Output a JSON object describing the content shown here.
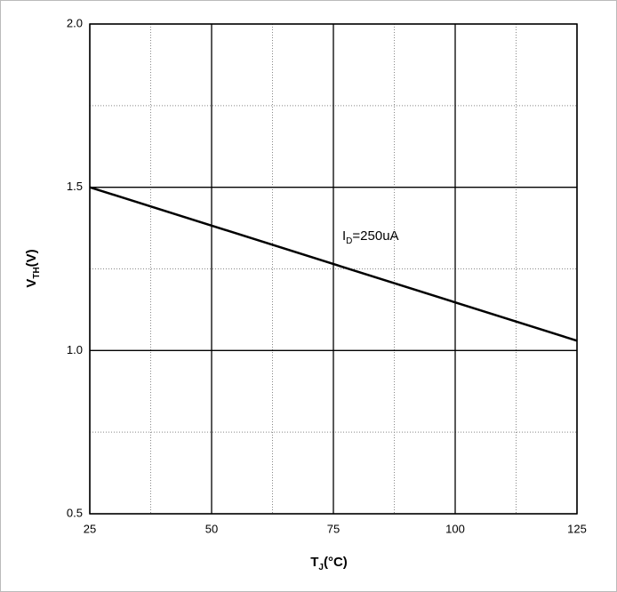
{
  "chart_data": {
    "type": "line",
    "x_label": {
      "main": "T",
      "sub": "J",
      "rest": "(°C)"
    },
    "y_label": {
      "main": "V",
      "sub": "TH",
      "rest": "(V)"
    },
    "annotation": {
      "main": "I",
      "sub": "D",
      "rest": "=250uA"
    },
    "x": [
      25,
      125
    ],
    "series": [
      {
        "color": "#000000",
        "values": [
          1.5,
          1.03
        ]
      }
    ],
    "xlim": [
      25,
      125
    ],
    "xticks": [
      25,
      50,
      75,
      100,
      125
    ],
    "ylim": [
      0.5,
      2.0
    ],
    "yticks": [
      {
        "value": 0.5,
        "label": "0.5"
      },
      {
        "value": 1.0,
        "label": "1.0"
      },
      {
        "value": 1.5,
        "label": "1.5"
      },
      {
        "value": 2.0,
        "label": "2.0"
      }
    ],
    "grid": true
  }
}
